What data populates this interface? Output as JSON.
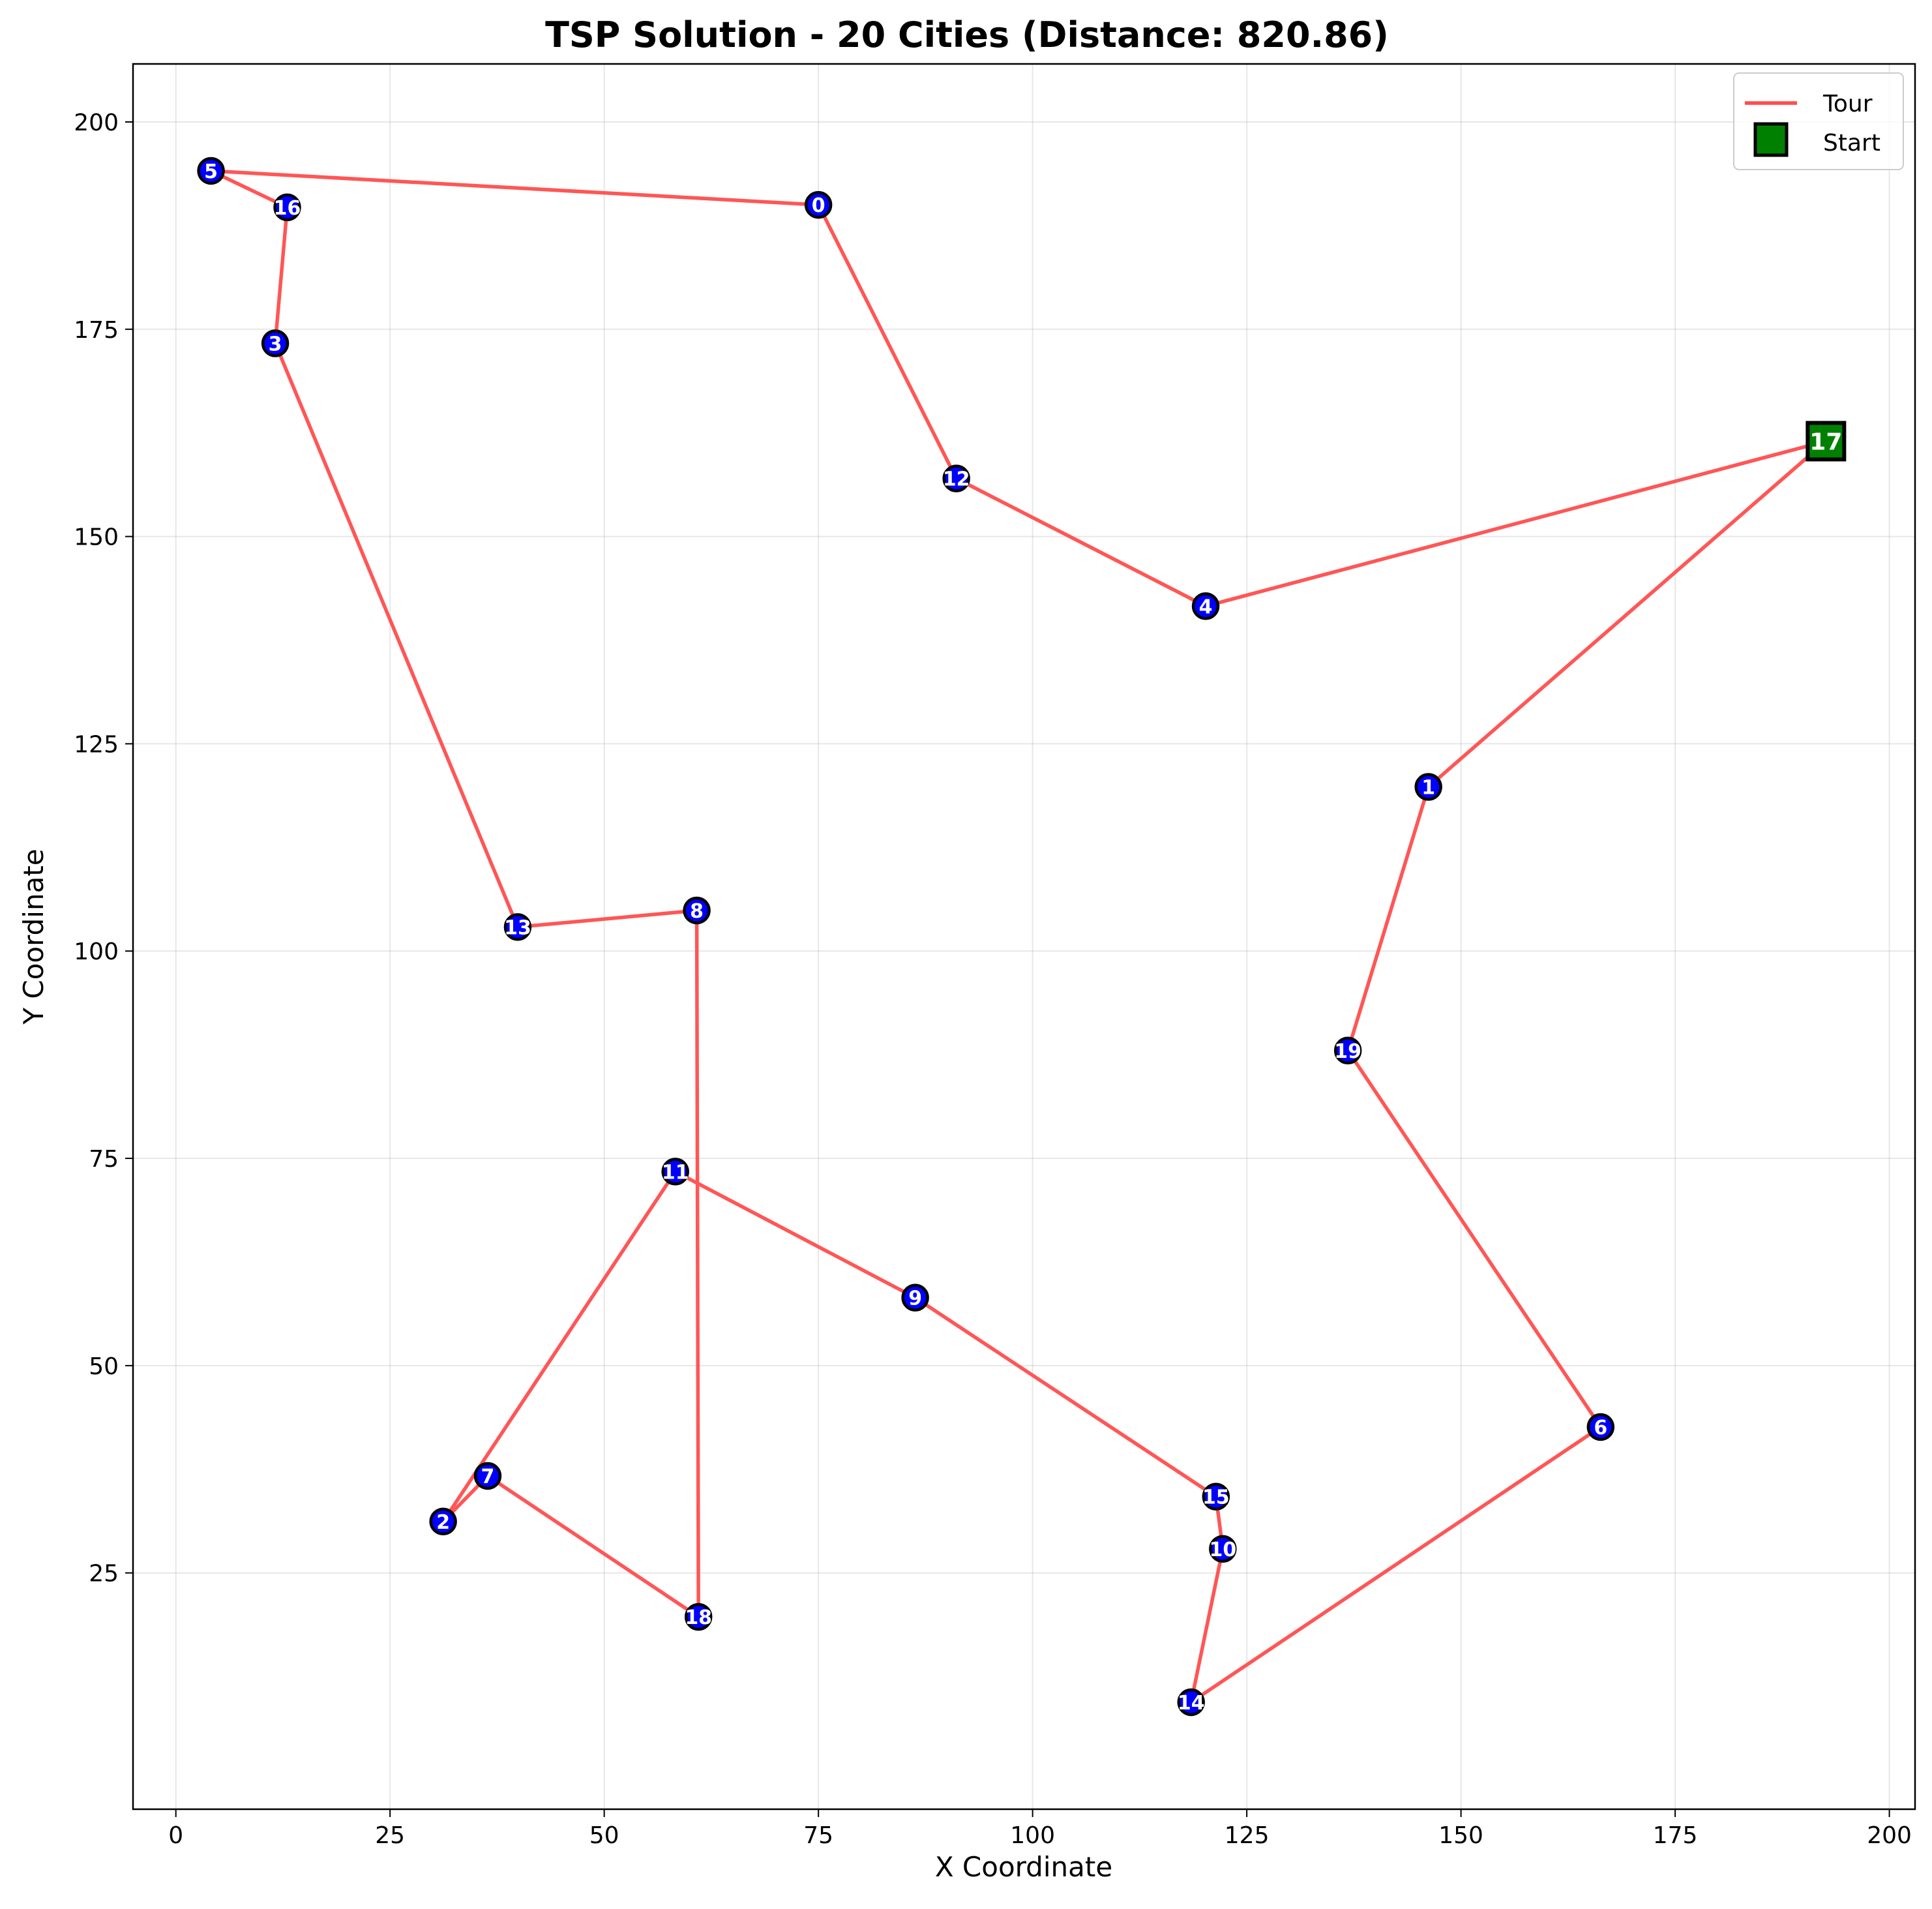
{
  "chart_data": {
    "type": "scatter",
    "title": "TSP Solution - 20 Cities (Distance: 820.86)",
    "xlabel": "X Coordinate",
    "ylabel": "Y Coordinate",
    "xlim": [
      -5,
      203
    ],
    "ylim": [
      -3.5,
      207
    ],
    "xticks": [
      0,
      25,
      50,
      75,
      100,
      125,
      150,
      175,
      200
    ],
    "yticks": [
      25,
      50,
      75,
      100,
      125,
      150,
      175,
      200
    ],
    "grid": true,
    "legend_position": "top-right",
    "legend": [
      {
        "label": "Tour",
        "marker": "line"
      },
      {
        "label": "Start",
        "marker": "square"
      }
    ],
    "cities": [
      {
        "id": 0,
        "label": "0",
        "x": 75,
        "y": 190
      },
      {
        "id": 1,
        "label": "1",
        "x": 146.2,
        "y": 119.8
      },
      {
        "id": 2,
        "label": "2",
        "x": 31.2,
        "y": 31.2
      },
      {
        "id": 3,
        "label": "3",
        "x": 11.6,
        "y": 173.3
      },
      {
        "id": 4,
        "label": "4",
        "x": 120.2,
        "y": 141.6
      },
      {
        "id": 5,
        "label": "5",
        "x": 4.1,
        "y": 194.1
      },
      {
        "id": 6,
        "label": "6",
        "x": 166.3,
        "y": 42.6
      },
      {
        "id": 7,
        "label": "7",
        "x": 36.4,
        "y": 36.7
      },
      {
        "id": 8,
        "label": "8",
        "x": 60.8,
        "y": 104.9
      },
      {
        "id": 9,
        "label": "9",
        "x": 86.3,
        "y": 58.2
      },
      {
        "id": 10,
        "label": "10",
        "x": 122.2,
        "y": 27.9
      },
      {
        "id": 11,
        "label": "11",
        "x": 58.3,
        "y": 73.4
      },
      {
        "id": 12,
        "label": "12",
        "x": 91.1,
        "y": 157
      },
      {
        "id": 13,
        "label": "13",
        "x": 39.9,
        "y": 102.9
      },
      {
        "id": 14,
        "label": "14",
        "x": 118.5,
        "y": 9.4
      },
      {
        "id": 15,
        "label": "15",
        "x": 121.4,
        "y": 34.2
      },
      {
        "id": 16,
        "label": "16",
        "x": 13,
        "y": 189.7
      },
      {
        "id": 17,
        "label": "17",
        "x": 192.6,
        "y": 161.5
      },
      {
        "id": 18,
        "label": "18",
        "x": 61,
        "y": 19.7
      },
      {
        "id": 19,
        "label": "19",
        "x": 136.8,
        "y": 88
      }
    ],
    "tour": [
      17,
      1,
      19,
      6,
      14,
      10,
      15,
      9,
      11,
      2,
      7,
      18,
      8,
      13,
      3,
      16,
      5,
      0,
      12,
      4,
      17
    ],
    "start_city": 17,
    "colors": {
      "tour_line": "#ff4d4d",
      "city_fill": "#0000ff",
      "city_edge": "#000000",
      "start_fill": "#008000",
      "label": "#ffffff"
    }
  }
}
